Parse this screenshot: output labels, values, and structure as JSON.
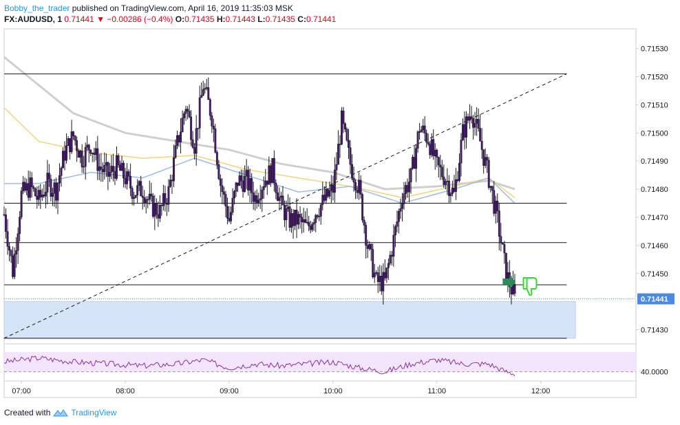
{
  "header": {
    "author": "Bobby_the_trader",
    "published": " published on TradingView.com, April 16, 2019 11:35:03 MSK",
    "symbol": "FX:AUDUSD, 1",
    "last": "0.71441",
    "change": "−0.00286 (−0.4%)",
    "o_label": "O:",
    "o_value": "0.71435",
    "h_label": "H:",
    "h_value": "0.71443",
    "l_label": "L:",
    "l_value": "0.71435",
    "c_label": "C:",
    "c_value": "0.71441"
  },
  "footer": {
    "created_with": "Created with",
    "brand": "TradingView"
  },
  "colors": {
    "candle_body": "#4a1a6b",
    "sma_gray": "#cfcfcf",
    "sma_yellow": "#f2d37a",
    "sma_blue": "#9bbce6",
    "zone": "#d6e4f7",
    "rsi_band": "#f3e5fb",
    "rsi_line": "#8b2da6",
    "price_tag": "#4b8ae0",
    "arrow": "#2e8b57",
    "thumb": "#3ed13e"
  },
  "icons": [
    "green-arrow-icon",
    "thumbs-down-icon",
    "tradingview-logo-icon"
  ],
  "chart_data": {
    "type": "candlestick",
    "symbol": "FX:AUDUSD",
    "interval": "1",
    "y_ticks": [
      "0.71530",
      "0.71520",
      "0.71510",
      "0.71500",
      "0.71490",
      "0.71480",
      "0.71470",
      "0.71460",
      "0.71450",
      "0.71430"
    ],
    "ylim": [
      0.71425,
      0.71537
    ],
    "x_ticks": [
      "07:00",
      "08:00",
      "09:00",
      "10:00",
      "11:00",
      "12:00"
    ],
    "xlim": [
      "06:50",
      "12:55"
    ],
    "last_price_label": "0.71441",
    "last_price": 0.71441,
    "horizontal_levels": [
      0.71521,
      0.71475,
      0.71461,
      0.71446,
      0.71427
    ],
    "support_zone": [
      0.71427,
      0.7144
    ],
    "trendline": {
      "from": [
        "06:50",
        0.71427
      ],
      "to": [
        "12:15",
        0.71521
      ]
    },
    "close_path": [
      [
        "06:50",
        0.71471
      ],
      [
        "06:55",
        0.71451
      ],
      [
        "07:00",
        0.71478
      ],
      [
        "07:05",
        0.71481
      ],
      [
        "07:10",
        0.71476
      ],
      [
        "07:15",
        0.71482
      ],
      [
        "07:20",
        0.7148
      ],
      [
        "07:25",
        0.71493
      ],
      [
        "07:30",
        0.71499
      ],
      [
        "07:35",
        0.71491
      ],
      [
        "07:40",
        0.71496
      ],
      [
        "07:45",
        0.71488
      ],
      [
        "07:50",
        0.71485
      ],
      [
        "07:55",
        0.71488
      ],
      [
        "08:00",
        0.71484
      ],
      [
        "08:05",
        0.71479
      ],
      [
        "08:10",
        0.7148
      ],
      [
        "08:15",
        0.71474
      ],
      [
        "08:20",
        0.71472
      ],
      [
        "08:25",
        0.71479
      ],
      [
        "08:30",
        0.71496
      ],
      [
        "08:35",
        0.7151
      ],
      [
        "08:40",
        0.71496
      ],
      [
        "08:45",
        0.71517
      ],
      [
        "08:50",
        0.71506
      ],
      [
        "08:55",
        0.71482
      ],
      [
        "09:00",
        0.71469
      ],
      [
        "09:05",
        0.71483
      ],
      [
        "09:10",
        0.71483
      ],
      [
        "09:15",
        0.71477
      ],
      [
        "09:20",
        0.71483
      ],
      [
        "09:25",
        0.71487
      ],
      [
        "09:30",
        0.71474
      ],
      [
        "09:35",
        0.71469
      ],
      [
        "09:40",
        0.71469
      ],
      [
        "09:45",
        0.71466
      ],
      [
        "09:50",
        0.71472
      ],
      [
        "09:55",
        0.71476
      ],
      [
        "10:00",
        0.7148
      ],
      [
        "10:05",
        0.71504
      ],
      [
        "10:10",
        0.71489
      ],
      [
        "10:15",
        0.7148
      ],
      [
        "10:20",
        0.7146
      ],
      [
        "10:25",
        0.71447
      ],
      [
        "10:30",
        0.71447
      ],
      [
        "10:35",
        0.71462
      ],
      [
        "10:40",
        0.71478
      ],
      [
        "10:45",
        0.71484
      ],
      [
        "10:50",
        0.71502
      ],
      [
        "10:55",
        0.71498
      ],
      [
        "11:00",
        0.71488
      ],
      [
        "11:05",
        0.71484
      ],
      [
        "11:10",
        0.71478
      ],
      [
        "11:15",
        0.715
      ],
      [
        "11:20",
        0.71508
      ],
      [
        "11:25",
        0.71497
      ],
      [
        "11:30",
        0.71484
      ],
      [
        "11:35",
        0.71469
      ],
      [
        "11:40",
        0.7145
      ],
      [
        "11:45",
        0.71441
      ]
    ],
    "moving_averages": [
      {
        "points": [
          [
            "06:50",
            0.71527
          ],
          [
            "07:30",
            0.71507
          ],
          [
            "08:00",
            0.715
          ],
          [
            "08:30",
            0.71497
          ],
          [
            "09:00",
            0.71494
          ],
          [
            "09:30",
            0.71489
          ],
          [
            "10:00",
            0.71486
          ],
          [
            "10:30",
            0.7148
          ],
          [
            "11:00",
            0.71481
          ],
          [
            "11:30",
            0.71483
          ],
          [
            "11:45",
            0.7148
          ]
        ]
      },
      {
        "points": [
          [
            "06:50",
            0.71509
          ],
          [
            "07:10",
            0.71497
          ],
          [
            "07:40",
            0.71493
          ],
          [
            "08:10",
            0.71491
          ],
          [
            "08:40",
            0.71492
          ],
          [
            "09:10",
            0.71487
          ],
          [
            "09:40",
            0.71484
          ],
          [
            "10:10",
            0.71481
          ],
          [
            "10:40",
            0.71477
          ],
          [
            "11:10",
            0.71481
          ],
          [
            "11:30",
            0.71484
          ],
          [
            "11:45",
            0.71477
          ]
        ]
      },
      {
        "points": [
          [
            "06:50",
            0.71482
          ],
          [
            "07:10",
            0.71482
          ],
          [
            "07:40",
            0.71486
          ],
          [
            "08:10",
            0.71484
          ],
          [
            "08:40",
            0.71491
          ],
          [
            "09:10",
            0.71485
          ],
          [
            "09:40",
            0.71479
          ],
          [
            "10:10",
            0.71481
          ],
          [
            "10:40",
            0.71475
          ],
          [
            "11:10",
            0.7148
          ],
          [
            "11:30",
            0.71484
          ],
          [
            "11:45",
            0.71475
          ]
        ]
      }
    ],
    "annotations": [
      "green-arrow",
      "thumbs-down"
    ],
    "rsi": {
      "level_label": "40.0000",
      "level": 40,
      "points": [
        [
          "06:50",
          45
        ],
        [
          "07:10",
          47
        ],
        [
          "07:30",
          45
        ],
        [
          "07:50",
          44
        ],
        [
          "08:10",
          43
        ],
        [
          "08:30",
          44
        ],
        [
          "08:45",
          46
        ],
        [
          "09:00",
          42
        ],
        [
          "09:15",
          44
        ],
        [
          "09:30",
          43
        ],
        [
          "09:45",
          44
        ],
        [
          "10:00",
          45
        ],
        [
          "10:15",
          42
        ],
        [
          "10:30",
          40
        ],
        [
          "10:45",
          44
        ],
        [
          "11:00",
          46
        ],
        [
          "11:15",
          44
        ],
        [
          "11:30",
          44
        ],
        [
          "11:40",
          40
        ],
        [
          "11:45",
          39
        ]
      ]
    }
  }
}
